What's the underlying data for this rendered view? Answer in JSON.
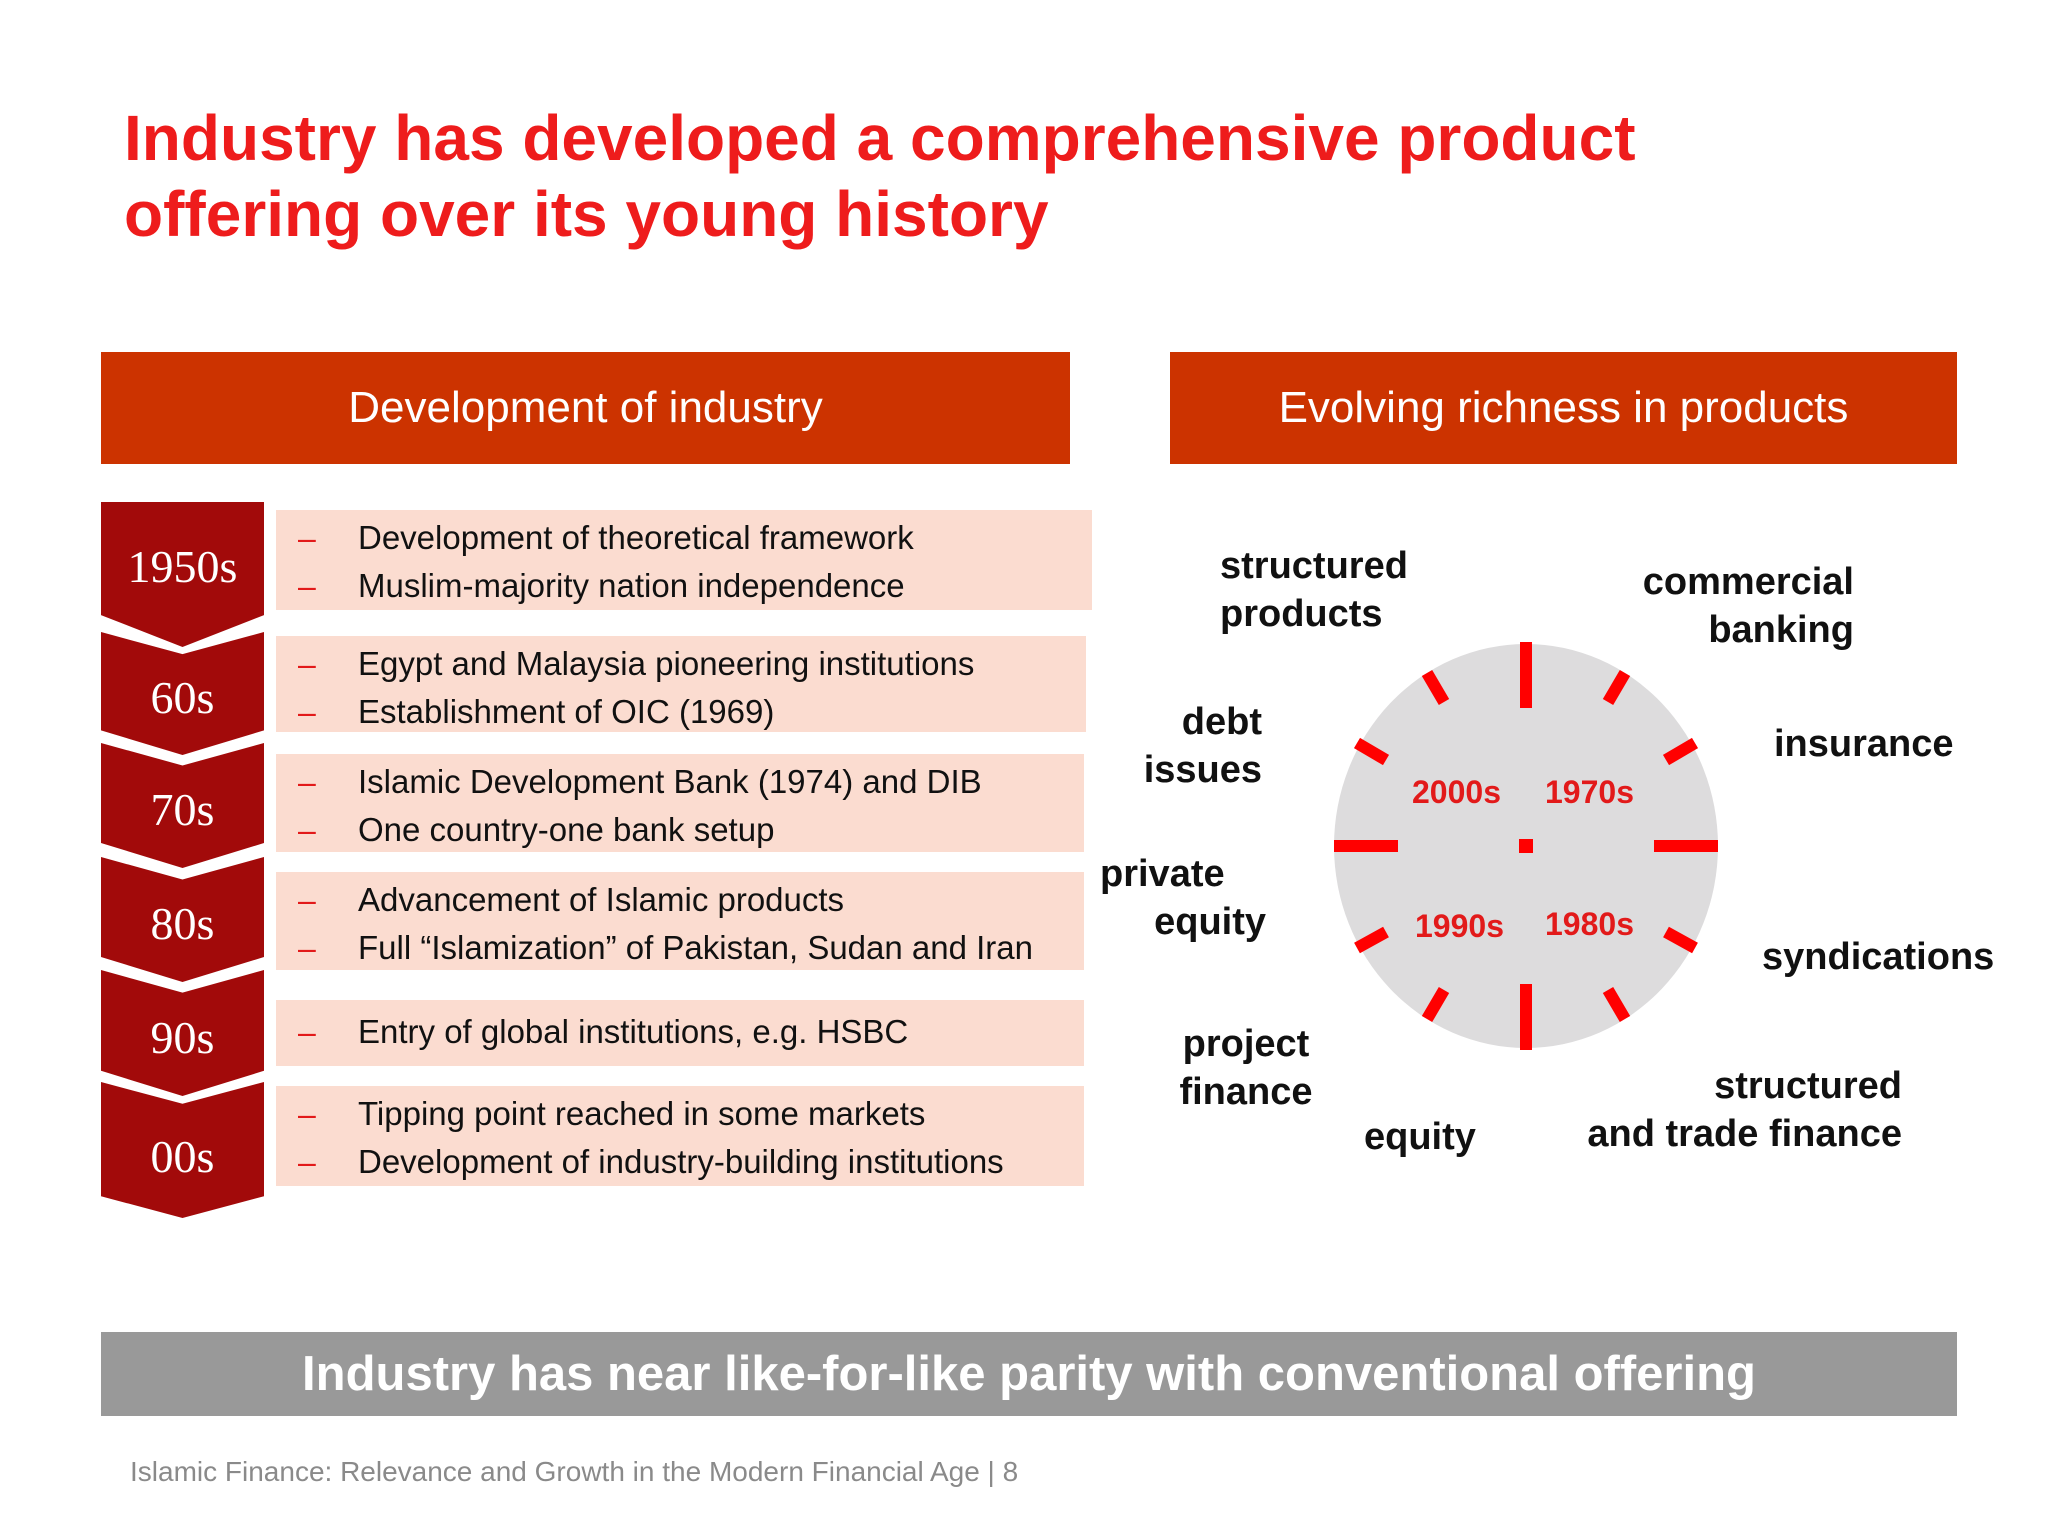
{
  "title": {
    "line1": "Industry has developed a comprehensive product",
    "line2": "offering over its young history"
  },
  "left_header": "Development of industry",
  "right_header": "Evolving richness in products",
  "timeline": [
    {
      "period": "1950s",
      "items": [
        "Development of theoretical framework",
        "Muslim-majority nation independence"
      ]
    },
    {
      "period": "60s",
      "items": [
        "Egypt and Malaysia pioneering institutions",
        "Establishment of OIC (1969)"
      ]
    },
    {
      "period": "70s",
      "items": [
        "Islamic Development Bank (1974) and DIB",
        "One country-one bank setup"
      ]
    },
    {
      "period": "80s",
      "items": [
        "Advancement of Islamic products",
        "Full “Islamization” of Pakistan, Sudan and Iran"
      ]
    },
    {
      "period": "90s",
      "items": [
        "Entry of global institutions, e.g. HSBC"
      ]
    },
    {
      "period": "00s",
      "items": [
        "Tipping point reached in some markets",
        "Development of industry-building institutions"
      ]
    }
  ],
  "bullet_dash": "–",
  "products": {
    "structured_products": [
      "structured",
      "products"
    ],
    "commercial_banking": [
      "commercial",
      "banking"
    ],
    "debt_issues": [
      "debt",
      "issues"
    ],
    "insurance": [
      "insurance"
    ],
    "private_equity": [
      "private",
      "equity"
    ],
    "syndications": [
      "syndications"
    ],
    "project_finance": [
      "project",
      "finance"
    ],
    "equity": [
      "equity"
    ],
    "structured_trade_finance": [
      "structured",
      "and trade finance"
    ]
  },
  "decades": {
    "d2000s": "2000s",
    "d1970s": "1970s",
    "d1990s": "1990s",
    "d1980s": "1980s"
  },
  "colors": {
    "title_red": "#ee1c1c",
    "header_bg": "#cc3300",
    "chevron_bg": "#a20a0a",
    "row_bg": "#fbdcd0",
    "circle_bg": "#dddcdd",
    "tick_red": "#ff0000",
    "banner_gray": "#999999"
  },
  "conclusion": "Industry has near like-for-like parity with conventional offering",
  "footnote": "Islamic Finance: Relevance and Growth in the Modern Financial Age | 8"
}
